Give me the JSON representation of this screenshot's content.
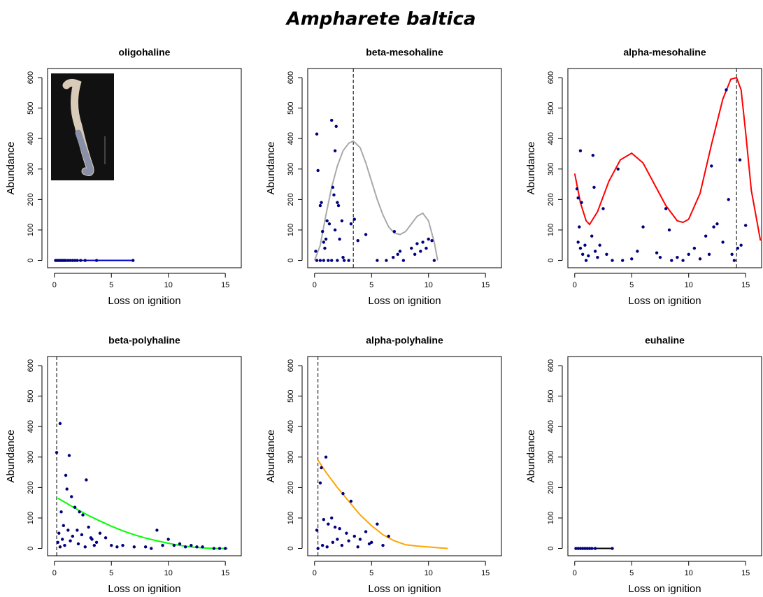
{
  "title": "Ampharete baltica",
  "chart_data": [
    {
      "type": "scatter",
      "title": "oligohaline",
      "xlabel": "Loss on ignition",
      "ylabel": "Abundance",
      "xlim": [
        -0.6,
        16.4
      ],
      "ylim": [
        -24,
        630
      ],
      "xticks": [
        0,
        5,
        10,
        15
      ],
      "yticks": [
        0,
        100,
        200,
        300,
        400,
        500,
        600
      ],
      "color": "#00007f",
      "x": [
        0.1,
        0.2,
        0.3,
        0.4,
        0.5,
        0.6,
        0.7,
        0.8,
        0.9,
        1.0,
        1.2,
        1.4,
        1.6,
        1.8,
        2.0,
        2.3,
        2.7,
        3.7,
        6.9
      ],
      "values": [
        0,
        0,
        0,
        0,
        0,
        0,
        0,
        0,
        0,
        0,
        0,
        0,
        0,
        0,
        0,
        0,
        0,
        0,
        0
      ],
      "fit": {
        "color": "#0000cd",
        "x": [
          0.1,
          6.9
        ],
        "values": [
          0,
          0
        ]
      }
    },
    {
      "type": "scatter",
      "title": "beta-mesohaline",
      "xlabel": "Loss on ignition",
      "ylabel": "Abundance",
      "xlim": [
        -0.6,
        16.4
      ],
      "ylim": [
        -24,
        630
      ],
      "xticks": [
        0,
        5,
        10,
        15
      ],
      "yticks": [
        0,
        100,
        200,
        300,
        400,
        500,
        600
      ],
      "color": "#00007f",
      "x": [
        0.2,
        0.3,
        0.1,
        0.5,
        0.6,
        0.7,
        0.8,
        0.9,
        1.0,
        1.1,
        1.3,
        1.5,
        1.6,
        1.7,
        1.8,
        1.8,
        1.9,
        2.0,
        2.1,
        2.2,
        2.4,
        2.5,
        3.2,
        3.5,
        3.8,
        4.5,
        5.5,
        6.3,
        6.9,
        7.0,
        7.3,
        7.5,
        7.8,
        8.5,
        8.8,
        9.0,
        9.3,
        9.5,
        9.8,
        10.0,
        10.3,
        10.5,
        0.2,
        0.5,
        0.8,
        1.2,
        1.5,
        2.0,
        2.6,
        3.0
      ],
      "values": [
        415,
        295,
        30,
        180,
        190,
        95,
        60,
        40,
        70,
        130,
        120,
        460,
        240,
        215,
        360,
        100,
        440,
        190,
        180,
        70,
        130,
        10,
        120,
        135,
        65,
        85,
        0,
        0,
        10,
        95,
        20,
        30,
        0,
        40,
        20,
        55,
        30,
        60,
        40,
        70,
        65,
        0,
        0,
        0,
        0,
        0,
        0,
        0,
        0,
        0
      ],
      "optimum": 3.4,
      "fit": {
        "color": "#a9a9a9",
        "x": [
          0,
          0.5,
          1,
          1.5,
          2,
          2.5,
          3,
          3.4,
          4,
          4.5,
          5,
          5.5,
          6,
          6.5,
          7,
          7.5,
          8,
          8.5,
          9,
          9.5,
          10,
          10.5,
          10.8
        ],
        "values": [
          0,
          50,
          150,
          240,
          310,
          360,
          385,
          392,
          370,
          320,
          260,
          200,
          150,
          110,
          90,
          85,
          95,
          120,
          145,
          155,
          130,
          60,
          0
        ]
      }
    },
    {
      "type": "scatter",
      "title": "alpha-mesohaline",
      "xlabel": "Loss on ignition",
      "ylabel": "Abundance",
      "xlim": [
        -0.6,
        16.4
      ],
      "ylim": [
        -24,
        630
      ],
      "xticks": [
        0,
        5,
        10,
        15
      ],
      "yticks": [
        0,
        100,
        200,
        300,
        400,
        500,
        600
      ],
      "color": "#00007f",
      "x": [
        0.2,
        0.3,
        0.5,
        0.6,
        0.4,
        0.3,
        0.5,
        0.7,
        0.9,
        1.0,
        1.2,
        1.5,
        1.6,
        1.7,
        1.8,
        2.0,
        2.2,
        2.5,
        2.8,
        3.3,
        3.8,
        4.2,
        5.0,
        5.5,
        6.0,
        7.2,
        7.5,
        8.0,
        8.3,
        8.5,
        9.0,
        9.5,
        10.0,
        10.5,
        11.0,
        11.5,
        11.8,
        12.0,
        12.2,
        12.5,
        13.0,
        13.3,
        13.5,
        13.8,
        14.0,
        14.3,
        14.5,
        14.6,
        15.0
      ],
      "values": [
        235,
        205,
        360,
        190,
        110,
        60,
        40,
        20,
        50,
        0,
        15,
        80,
        345,
        240,
        30,
        10,
        50,
        170,
        20,
        0,
        300,
        0,
        5,
        30,
        110,
        25,
        10,
        170,
        100,
        0,
        10,
        0,
        20,
        40,
        5,
        80,
        20,
        310,
        110,
        120,
        60,
        560,
        200,
        20,
        0,
        40,
        330,
        50,
        115
      ],
      "optimum": 14.2,
      "fit": {
        "color": "#ff0000",
        "x": [
          0,
          0.5,
          1,
          1.3,
          2,
          3,
          4,
          5,
          6,
          7,
          8,
          9,
          9.5,
          10,
          11,
          12,
          13,
          13.7,
          14.2,
          14.6,
          15,
          15.5,
          16.3
        ],
        "values": [
          285,
          190,
          130,
          118,
          160,
          260,
          330,
          352,
          320,
          250,
          180,
          130,
          125,
          135,
          220,
          380,
          530,
          595,
          600,
          560,
          420,
          230,
          65
        ]
      }
    },
    {
      "type": "scatter",
      "title": "beta-polyhaline",
      "xlabel": "Loss on ignition",
      "ylabel": "Abundance",
      "xlim": [
        -0.6,
        16.4
      ],
      "ylim": [
        -24,
        630
      ],
      "xticks": [
        0,
        5,
        10,
        15
      ],
      "yticks": [
        0,
        100,
        200,
        300,
        400,
        500,
        600
      ],
      "color": "#00007f",
      "x": [
        0.2,
        0.5,
        0.6,
        0.8,
        1.0,
        1.1,
        1.3,
        1.5,
        1.8,
        2.0,
        2.2,
        2.5,
        2.8,
        3.0,
        3.3,
        3.5,
        4.0,
        4.5,
        5.0,
        5.5,
        6.0,
        7.0,
        8.0,
        8.5,
        9.0,
        9.5,
        10.0,
        10.5,
        11.0,
        11.5,
        12.0,
        12.5,
        13.0,
        14.0,
        14.5,
        15.0,
        0.3,
        0.4,
        0.5,
        0.7,
        0.9,
        1.2,
        1.4,
        1.6,
        2.1,
        2.4,
        2.7,
        3.2,
        3.7
      ],
      "values": [
        315,
        410,
        120,
        75,
        240,
        195,
        305,
        170,
        135,
        60,
        120,
        110,
        225,
        70,
        30,
        10,
        50,
        35,
        10,
        5,
        10,
        5,
        5,
        0,
        60,
        10,
        30,
        10,
        15,
        5,
        10,
        5,
        5,
        0,
        0,
        0,
        20,
        50,
        5,
        30,
        10,
        60,
        25,
        40,
        15,
        45,
        5,
        35,
        20
      ],
      "optimum": 0.2,
      "fit": {
        "color": "#00ff00",
        "x": [
          0.3,
          1,
          2,
          3,
          4,
          5,
          6,
          7,
          8,
          9,
          10,
          11,
          12,
          13,
          14,
          15.2
        ],
        "values": [
          165,
          150,
          128,
          108,
          90,
          73,
          58,
          45,
          34,
          25,
          17,
          10,
          5,
          2,
          0,
          0
        ]
      }
    },
    {
      "type": "scatter",
      "title": "alpha-polyhaline",
      "xlabel": "Loss on ignition",
      "ylabel": "Abundance",
      "xlim": [
        -0.6,
        16.4
      ],
      "ylim": [
        -24,
        630
      ],
      "xticks": [
        0,
        5,
        10,
        15
      ],
      "yticks": [
        0,
        100,
        200,
        300,
        400,
        500,
        600
      ],
      "color": "#00007f",
      "x": [
        0.2,
        0.5,
        0.6,
        0.8,
        1.0,
        1.2,
        1.5,
        1.8,
        2.0,
        2.2,
        2.5,
        2.8,
        3.0,
        3.2,
        3.5,
        4.0,
        4.5,
        5.0,
        5.5,
        6.0,
        6.5,
        0.3,
        0.7,
        1.1,
        1.6,
        2.4,
        3.8,
        4.8
      ],
      "values": [
        60,
        215,
        265,
        95,
        300,
        80,
        100,
        70,
        30,
        65,
        180,
        50,
        25,
        155,
        40,
        30,
        55,
        20,
        80,
        10,
        40,
        0,
        10,
        5,
        20,
        10,
        5,
        15
      ],
      "optimum": 0.3,
      "fit": {
        "color": "#ffa500",
        "x": [
          0.3,
          1,
          2,
          3,
          4,
          5,
          6,
          7,
          8,
          9,
          10,
          11,
          11.7
        ],
        "values": [
          290,
          250,
          200,
          155,
          110,
          75,
          45,
          25,
          12,
          8,
          5,
          2,
          0
        ]
      }
    },
    {
      "type": "scatter",
      "title": "euhaline",
      "xlabel": "Loss on ignition",
      "ylabel": "Abundance",
      "xlim": [
        -0.6,
        16.4
      ],
      "ylim": [
        -24,
        630
      ],
      "xticks": [
        0,
        5,
        10,
        15
      ],
      "yticks": [
        0,
        100,
        200,
        300,
        400,
        500,
        600
      ],
      "color": "#00007f",
      "x": [
        0.1,
        0.3,
        0.5,
        0.7,
        0.9,
        1.1,
        1.3,
        1.5,
        1.8,
        3.3
      ],
      "values": [
        0,
        0,
        0,
        0,
        0,
        0,
        0,
        0,
        0,
        0
      ],
      "fit": {
        "color": "#000000",
        "x": [
          0.1,
          3.3
        ],
        "values": [
          0,
          0
        ]
      }
    }
  ]
}
